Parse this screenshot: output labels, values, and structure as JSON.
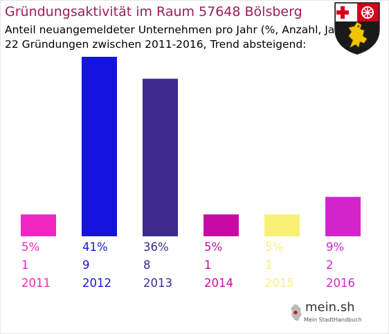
{
  "header": {
    "title": "Gründungsaktivität im Raum 57648 Bölsberg",
    "subtitle_line1": "Anteil neuangemeldeter Unternehmen pro Jahr (%, Anzahl, Jahr)",
    "subtitle_line2": "22 Gründungen zwischen 2011-2016, Trend absteigend:"
  },
  "coat_of_arms": {
    "icon": "rhineland-palatinate-coat-of-arms-icon"
  },
  "branding": {
    "logo_text": "mein.sh",
    "tagline": "Mein StadtHandbuch",
    "icon": "germany-map-icon"
  },
  "chart_data": {
    "type": "bar",
    "title": "Gründungsaktivität im Raum 57648 Bölsberg",
    "categories": [
      "2011",
      "2012",
      "2013",
      "2014",
      "2015",
      "2016"
    ],
    "percent_labels": [
      "5%",
      "41%",
      "36%",
      "5%",
      "5%",
      "9%"
    ],
    "values": [
      5,
      41,
      36,
      5,
      5,
      9
    ],
    "counts": [
      1,
      9,
      8,
      1,
      1,
      2
    ],
    "colors": [
      "#f026c0",
      "#1414dc",
      "#3c2a8e",
      "#c80aa5",
      "#f8f074",
      "#d226cc"
    ],
    "ylim": [
      0,
      41
    ],
    "grid": false,
    "legend": "none"
  }
}
